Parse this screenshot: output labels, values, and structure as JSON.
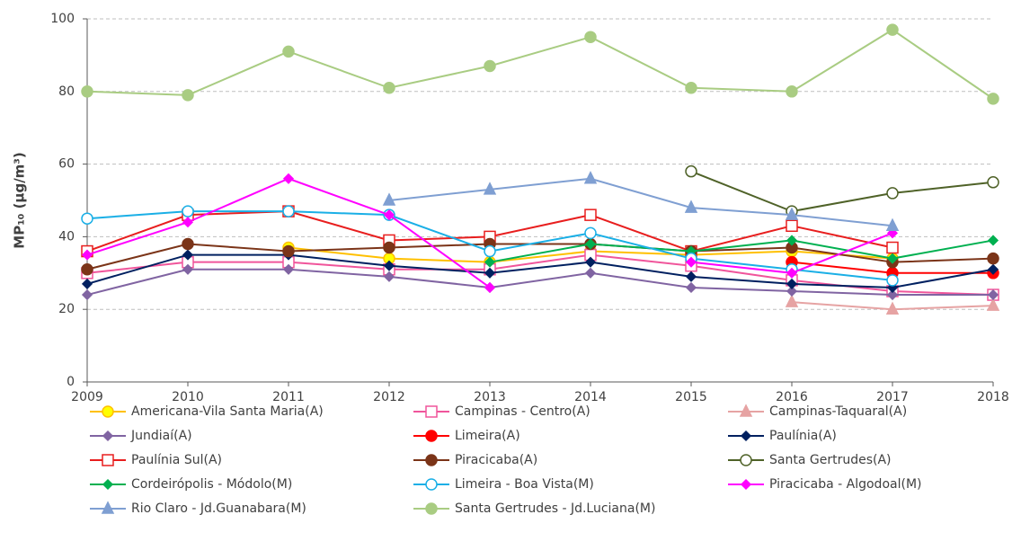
{
  "chart_data": {
    "type": "line",
    "ylabel": "MP₁₀ (µg/m³)",
    "categories": [
      "2009",
      "2010",
      "2011",
      "2012",
      "2013",
      "2014",
      "2015",
      "2016",
      "2017",
      "2018"
    ],
    "ylim": [
      0,
      100
    ],
    "yticks": [
      0,
      20,
      40,
      60,
      80,
      100
    ],
    "grid": true,
    "legend": "bottom",
    "series": [
      {
        "name": "Americana-Vila Santa Maria(A)",
        "color": "#FFC000",
        "marker": "circle",
        "filled": true,
        "values": [
          null,
          null,
          37,
          34,
          33,
          36,
          35,
          36,
          34,
          null
        ]
      },
      {
        "name": "Campinas - Centro(A)",
        "color": "#F0559B",
        "marker": "square",
        "filled": false,
        "values": [
          30,
          33,
          33,
          31,
          31,
          35,
          32,
          28,
          25,
          24
        ]
      },
      {
        "name": "Campinas-Taquaral(A)",
        "color": "#E6A3A3",
        "marker": "triangle",
        "filled": true,
        "values": [
          null,
          null,
          null,
          null,
          null,
          null,
          null,
          22,
          20,
          21
        ]
      },
      {
        "name": "Jundiaí(A)",
        "color": "#8064A2",
        "marker": "diamond",
        "filled": true,
        "values": [
          24,
          31,
          31,
          29,
          26,
          30,
          26,
          25,
          24,
          24
        ]
      },
      {
        "name": "Limeira(A)",
        "color": "#FF0000",
        "marker": "circle",
        "filled": true,
        "values": [
          null,
          null,
          null,
          null,
          null,
          null,
          null,
          33,
          30,
          30
        ]
      },
      {
        "name": "Paulínia(A)",
        "color": "#002060",
        "marker": "diamond",
        "filled": true,
        "values": [
          27,
          35,
          35,
          32,
          30,
          33,
          29,
          27,
          26,
          31
        ]
      },
      {
        "name": "Paulínia Sul(A)",
        "color": "#E81E1E",
        "marker": "square",
        "filled": false,
        "values": [
          36,
          46,
          47,
          39,
          40,
          46,
          36,
          43,
          37,
          null
        ]
      },
      {
        "name": "Piracicaba(A)",
        "color": "#7B3418",
        "marker": "circle",
        "filled": true,
        "values": [
          31,
          38,
          36,
          37,
          38,
          38,
          36,
          37,
          33,
          34
        ]
      },
      {
        "name": "Santa Gertrudes(A)",
        "color": "#4F6228",
        "marker": "circle",
        "filled": false,
        "values": [
          null,
          null,
          null,
          null,
          null,
          null,
          58,
          47,
          52,
          55
        ]
      },
      {
        "name": "Cordeirópolis - Módolo(M)",
        "color": "#00B050",
        "marker": "diamond",
        "filled": true,
        "values": [
          null,
          null,
          null,
          null,
          33,
          38,
          36,
          39,
          34,
          39
        ]
      },
      {
        "name": "Limeira - Boa Vista(M)",
        "color": "#1AAFE6",
        "marker": "circle",
        "filled": false,
        "values": [
          45,
          47,
          47,
          46,
          36,
          41,
          34,
          31,
          28,
          null
        ]
      },
      {
        "name": "Piracicaba - Algodoal(M)",
        "color": "#FF00FF",
        "marker": "diamond",
        "filled": true,
        "values": [
          35,
          44,
          56,
          46,
          26,
          null,
          33,
          30,
          41,
          null
        ]
      },
      {
        "name": "Rio Claro - Jd.Guanabara(M)",
        "color": "#7F9FD2",
        "marker": "triangle",
        "filled": true,
        "values": [
          null,
          null,
          null,
          50,
          53,
          56,
          48,
          46,
          43,
          null
        ]
      },
      {
        "name": "Santa Gertrudes - Jd.Luciana(M)",
        "color": "#A9CC82",
        "marker": "circle",
        "filled": true,
        "values": [
          80,
          79,
          91,
          81,
          87,
          95,
          81,
          80,
          97,
          78
        ]
      }
    ]
  }
}
